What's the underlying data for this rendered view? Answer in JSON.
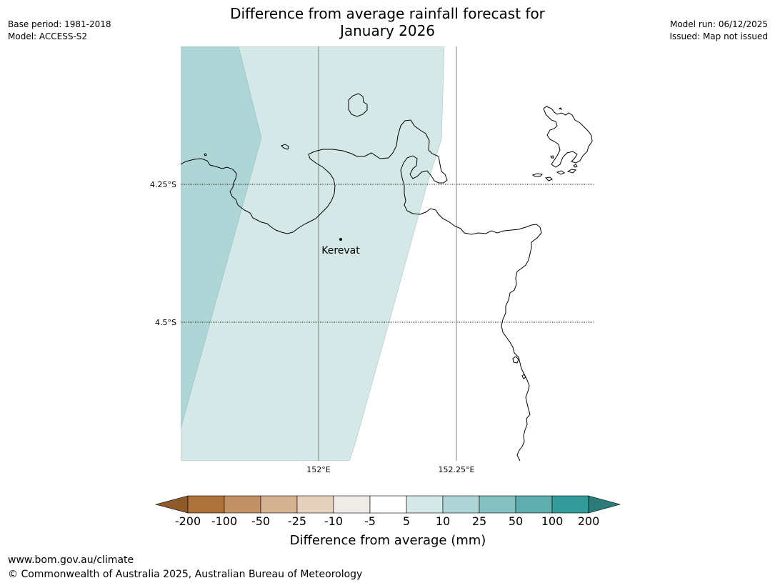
{
  "title": {
    "line1": "Difference from average rainfall forecast for",
    "line2": "January 2026"
  },
  "meta_left": {
    "base_period": "Base period: 1981-2018",
    "model": "Model: ACCESS-S2"
  },
  "meta_right": {
    "model_run": "Model run: 06/12/2025",
    "issued": "Issued: Map not issued"
  },
  "axes": {
    "lat_labels": [
      "4.25°S",
      "4.5°S"
    ],
    "lon_labels": [
      "152°E",
      "152.25°E"
    ]
  },
  "places": [
    {
      "name": "Kerevat",
      "lon": 152.04,
      "lat": -4.35
    }
  ],
  "colorbar": {
    "title": "Difference from average (mm)",
    "ticks": [
      "-200",
      "-100",
      "-50",
      "-25",
      "-10",
      "-5",
      "5",
      "10",
      "25",
      "50",
      "100",
      "200"
    ],
    "colors": {
      "below_min": "#8f5a2a",
      "bins": [
        "#ad733a",
        "#c29166",
        "#d4b292",
        "#e6d1bf",
        "#efebe7",
        "#ffffff",
        "#d5e8e8",
        "#aed6d6",
        "#85c1c0",
        "#5eaeae",
        "#339c9b"
      ],
      "above_max": "#2a7c7b"
    }
  },
  "legend_fill_colors": {
    "band_10_25": "#aed6d6",
    "band_5_10": "#d5e8e8"
  },
  "footer": {
    "url": "www.bom.gov.au/climate",
    "copyright": "© Commonwealth of Australia 2025, Australian Bureau of Meteorology"
  }
}
